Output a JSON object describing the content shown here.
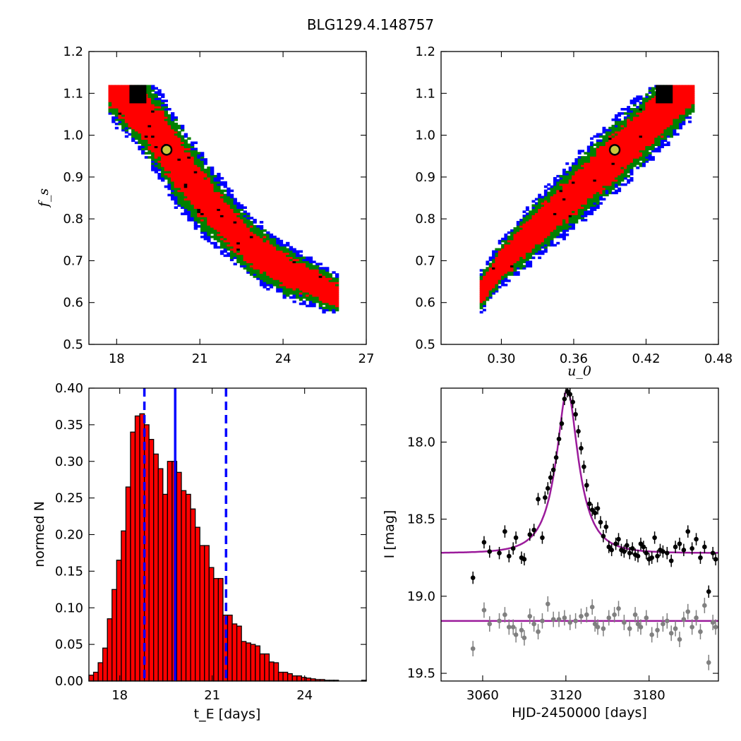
{
  "figure_title": "BLG129.4.148757",
  "chart_data": [
    {
      "type": "heatmap",
      "panel": "top-left",
      "xlabel": "",
      "ylabel": "f_s",
      "xlim": [
        17,
        27
      ],
      "ylim": [
        0.5,
        1.2
      ],
      "xticks": [
        "18",
        "21",
        "24",
        "27"
      ],
      "yticks": [
        "0.5",
        "0.6",
        "0.7",
        "0.8",
        "0.9",
        "1.0",
        "1.1",
        "1.2"
      ],
      "colors": {
        "outer": "#0000ff",
        "middle": "#008000",
        "inner": "#ff0000",
        "core": "#000000"
      },
      "best_fit": {
        "x": 19.8,
        "y": 0.965
      },
      "band_ridge": [
        [
          17.7,
          1.12
        ],
        [
          19.0,
          1.05
        ],
        [
          20.0,
          0.955
        ],
        [
          21.0,
          0.865
        ],
        [
          22.0,
          0.79
        ],
        [
          23.0,
          0.725
        ],
        [
          24.0,
          0.68
        ],
        [
          25.0,
          0.65
        ],
        [
          26.0,
          0.615
        ]
      ],
      "band_halfwidth": [
        [
          17.7,
          0.045
        ],
        [
          19.0,
          0.06
        ],
        [
          20.0,
          0.065
        ],
        [
          21.0,
          0.06
        ],
        [
          22.0,
          0.05
        ],
        [
          23.0,
          0.045
        ],
        [
          24.0,
          0.04
        ],
        [
          25.0,
          0.035
        ],
        [
          26.0,
          0.03
        ]
      ]
    },
    {
      "type": "heatmap",
      "panel": "top-right",
      "xlabel": "u_0",
      "ylabel": "",
      "xlim": [
        0.25,
        0.48
      ],
      "ylim": [
        0.5,
        1.2
      ],
      "xticks": [
        "0.30",
        "0.36",
        "0.42",
        "0.48"
      ],
      "yticks": [
        "0.5",
        "0.6",
        "0.7",
        "0.8",
        "0.9",
        "1.0",
        "1.1",
        "1.2"
      ],
      "colors": {
        "outer": "#0000ff",
        "middle": "#008000",
        "inner": "#ff0000",
        "core": "#000000"
      },
      "best_fit": {
        "x": 0.394,
        "y": 0.965
      },
      "band_ridge": [
        [
          0.282,
          0.62
        ],
        [
          0.3,
          0.695
        ],
        [
          0.33,
          0.78
        ],
        [
          0.36,
          0.86
        ],
        [
          0.39,
          0.94
        ],
        [
          0.42,
          1.02
        ],
        [
          0.45,
          1.1
        ],
        [
          0.46,
          1.12
        ]
      ],
      "band_halfwidth": [
        [
          0.282,
          0.03
        ],
        [
          0.3,
          0.035
        ],
        [
          0.33,
          0.045
        ],
        [
          0.36,
          0.05
        ],
        [
          0.39,
          0.055
        ],
        [
          0.42,
          0.055
        ],
        [
          0.45,
          0.05
        ],
        [
          0.46,
          0.045
        ]
      ]
    },
    {
      "type": "bar",
      "panel": "bottom-left",
      "xlabel": "t_E [days]",
      "ylabel": "normed N",
      "xlim": [
        17.0,
        26.0
      ],
      "ylim": [
        0.0,
        0.4
      ],
      "xticks": [
        "18",
        "21",
        "24"
      ],
      "yticks": [
        "0.00",
        "0.05",
        "0.10",
        "0.15",
        "0.20",
        "0.25",
        "0.30",
        "0.35",
        "0.40"
      ],
      "bin_start": 17.0,
      "bin_width": 0.15,
      "values": [
        0.008,
        0.012,
        0.025,
        0.045,
        0.085,
        0.125,
        0.165,
        0.205,
        0.265,
        0.34,
        0.362,
        0.365,
        0.35,
        0.33,
        0.31,
        0.29,
        0.255,
        0.3,
        0.3,
        0.285,
        0.26,
        0.255,
        0.235,
        0.21,
        0.185,
        0.185,
        0.155,
        0.14,
        0.14,
        0.09,
        0.09,
        0.078,
        0.075,
        0.054,
        0.052,
        0.05,
        0.048,
        0.037,
        0.037,
        0.026,
        0.025,
        0.012,
        0.012,
        0.01,
        0.007,
        0.007,
        0.005,
        0.004,
        0.003,
        0.002,
        0.002,
        0.001,
        0.001,
        0.001,
        0.0,
        0.0,
        0.0,
        0.0,
        0.0,
        0.001
      ],
      "bar_color": "#ff0000",
      "vlines": [
        {
          "x": 18.8,
          "style": "dashed",
          "color": "#0000ff"
        },
        {
          "x": 19.8,
          "style": "solid",
          "color": "#0000ff"
        },
        {
          "x": 21.45,
          "style": "dashed",
          "color": "#0000ff"
        }
      ]
    },
    {
      "type": "scatter",
      "panel": "bottom-right",
      "xlabel": "HJD-2450000 [days]",
      "ylabel": "I [mag]",
      "xlim": [
        3030,
        3230
      ],
      "ylim": [
        19.55,
        17.65
      ],
      "xticks": [
        "3060",
        "3120",
        "3180"
      ],
      "yticks": [
        "18.0",
        "18.5",
        "19.0",
        "19.5"
      ],
      "model": {
        "t0": 3121,
        "tE": 19.8,
        "u0": 0.394,
        "baseline": 18.72,
        "peak": 17.66,
        "color": "#9b1b9b"
      },
      "model_flat": {
        "value": 19.16,
        "color": "#9b1b9b"
      },
      "series": [
        {
          "color": "#000000",
          "x": [
            3053,
            3061,
            3065,
            3072,
            3076,
            3079,
            3082,
            3084,
            3088,
            3090,
            3094,
            3097,
            3100,
            3103,
            3105,
            3107,
            3109,
            3111,
            3113,
            3115,
            3117,
            3119,
            3121,
            3123,
            3125,
            3127,
            3129,
            3131,
            3133,
            3135,
            3137,
            3139,
            3141,
            3143,
            3145,
            3147,
            3149,
            3151,
            3153,
            3156,
            3158,
            3160,
            3162,
            3164,
            3166,
            3168,
            3170,
            3172,
            3174,
            3176,
            3178,
            3180,
            3182,
            3184,
            3186,
            3188,
            3190,
            3193,
            3196,
            3199,
            3202,
            3205,
            3208,
            3211,
            3214,
            3217,
            3220,
            3223,
            3226,
            3228
          ],
          "y": [
            18.88,
            18.65,
            18.71,
            18.72,
            18.58,
            18.74,
            18.69,
            18.62,
            18.75,
            18.76,
            18.6,
            18.57,
            18.37,
            18.62,
            18.36,
            18.3,
            18.23,
            18.18,
            18.1,
            17.98,
            17.88,
            17.72,
            17.67,
            17.69,
            17.74,
            17.82,
            17.93,
            18.04,
            18.16,
            18.28,
            18.4,
            18.44,
            18.46,
            18.43,
            18.52,
            18.61,
            18.55,
            18.68,
            18.7,
            18.66,
            18.63,
            18.7,
            18.71,
            18.67,
            18.72,
            18.69,
            18.73,
            18.74,
            18.66,
            18.68,
            18.72,
            18.76,
            18.75,
            18.62,
            18.74,
            18.7,
            18.71,
            18.72,
            18.77,
            18.68,
            18.66,
            18.7,
            18.58,
            18.69,
            18.63,
            18.75,
            18.68,
            18.97,
            18.72,
            18.76
          ],
          "err": [
            0.04
          ]
        },
        {
          "color": "#808080",
          "x": [
            3053,
            3061,
            3065,
            3072,
            3076,
            3079,
            3082,
            3084,
            3088,
            3090,
            3094,
            3097,
            3100,
            3103,
            3107,
            3111,
            3115,
            3119,
            3123,
            3127,
            3131,
            3135,
            3139,
            3141,
            3143,
            3147,
            3151,
            3155,
            3158,
            3162,
            3166,
            3170,
            3172,
            3174,
            3178,
            3182,
            3186,
            3190,
            3193,
            3196,
            3199,
            3202,
            3205,
            3208,
            3211,
            3214,
            3217,
            3220,
            3223,
            3226,
            3228
          ],
          "y": [
            19.34,
            19.09,
            19.18,
            19.16,
            19.12,
            19.2,
            19.2,
            19.25,
            19.22,
            19.27,
            19.13,
            19.18,
            19.23,
            19.16,
            19.05,
            19.15,
            19.15,
            19.14,
            19.17,
            19.16,
            19.13,
            19.12,
            19.07,
            19.18,
            19.2,
            19.21,
            19.14,
            19.12,
            19.08,
            19.17,
            19.21,
            19.12,
            19.18,
            19.2,
            19.14,
            19.25,
            19.22,
            19.18,
            19.16,
            19.24,
            19.21,
            19.28,
            19.15,
            19.1,
            19.2,
            19.14,
            19.23,
            19.06,
            19.43,
            19.17,
            19.2
          ],
          "err": [
            0.05
          ]
        }
      ]
    }
  ]
}
